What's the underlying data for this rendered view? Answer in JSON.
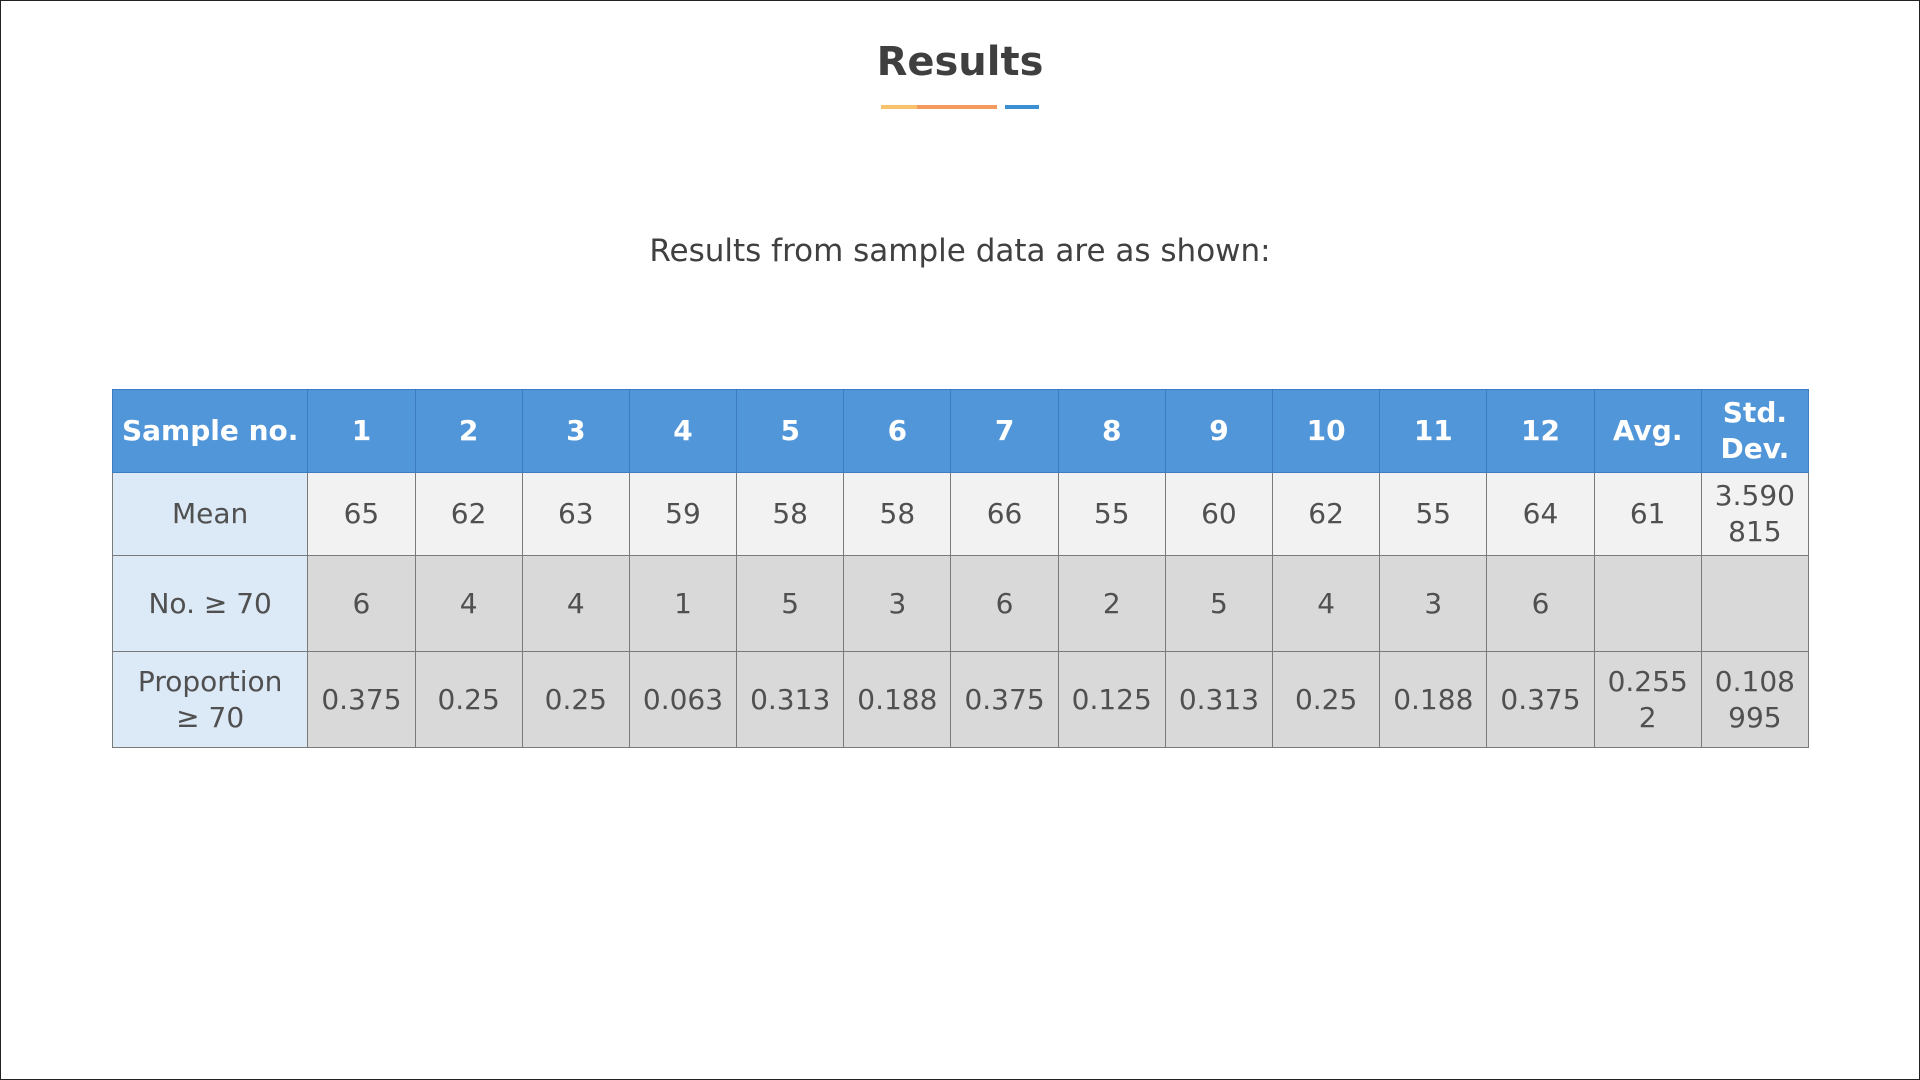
{
  "title": "Results",
  "title_underline_colors": [
    "#f7c26b",
    "#f59a5e",
    "#3c8fd0"
  ],
  "subtitle": "Results from sample data are as shown:",
  "table": {
    "header_color": "#5196d8",
    "header": [
      "Sample no.",
      "1",
      "2",
      "3",
      "4",
      "5",
      "6",
      "7",
      "8",
      "9",
      "10",
      "11",
      "12",
      "Avg.",
      "Std.\nDev."
    ],
    "rows": [
      {
        "label": "Mean",
        "cells": [
          "65",
          "62",
          "63",
          "59",
          "58",
          "58",
          "66",
          "55",
          "60",
          "62",
          "55",
          "64",
          "61",
          "3.590\n815"
        ]
      },
      {
        "label": "No. ≥ 70",
        "cells": [
          "6",
          "4",
          "4",
          "1",
          "5",
          "3",
          "6",
          "2",
          "5",
          "4",
          "3",
          "6",
          "",
          ""
        ]
      },
      {
        "label": "Proportion\n≥ 70",
        "cells": [
          "0.375",
          "0.25",
          "0.25",
          "0.063",
          "0.313",
          "0.188",
          "0.375",
          "0.125",
          "0.313",
          "0.25",
          "0.188",
          "0.375",
          "0.255\n2",
          "0.108\n995"
        ]
      }
    ]
  }
}
